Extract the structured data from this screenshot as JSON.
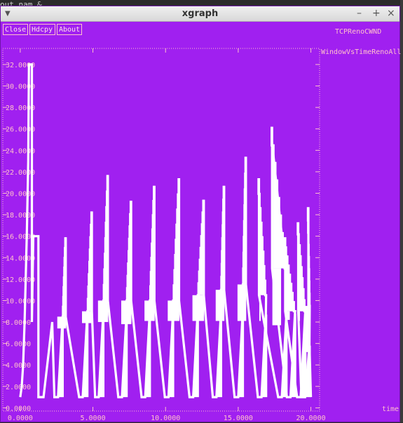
{
  "background": {
    "terminal_text": "out.nam &"
  },
  "window": {
    "title": "xgraph",
    "menu_icon": "triangle-down-icon",
    "controls": {
      "minimize": "–",
      "maximize": "+",
      "close": "×"
    }
  },
  "buttons": {
    "close": "Close",
    "hdcpy": "Hdcpy",
    "about": "About"
  },
  "plot": {
    "title": "TCPRenoCWND",
    "series_label": "WindowVsTimeRenoAll",
    "x_unit": "time",
    "x_ticks": [
      "0.0000",
      "5.0000",
      "10.0000",
      "15.0000",
      "20.0000"
    ],
    "y_ticks": [
      "0.0000",
      "2.0000",
      "4.0000",
      "6.0000",
      "8.0000",
      "10.0000",
      "12.0000",
      "14.0000",
      "16.0000",
      "18.0000",
      "20.0000",
      "22.0000",
      "24.0000",
      "26.0000",
      "28.0000",
      "30.0000",
      "32.0000"
    ],
    "colors": {
      "background": "#a020f0",
      "axes": "#ffc0cb",
      "series": "#ffffff"
    }
  },
  "chart_data": {
    "type": "line",
    "title": "TCPRenoCWND",
    "legend": [
      "WindowVsTimeRenoAll"
    ],
    "xlabel": "time",
    "ylabel": "",
    "xlim": [
      -1.2,
      20.6
    ],
    "ylim": [
      -0.3,
      33.5
    ],
    "grid": false,
    "cycles": [
      {
        "peak_t": 3.1,
        "peak": 15.8,
        "high_floor": 8.5,
        "low_t": 2.9,
        "low_peak": 8.0
      },
      {
        "peak_t": 4.9,
        "peak": 18.2,
        "high_floor": 9.0,
        "low_t": 4.6,
        "low_peak": 8.5
      },
      {
        "peak_t": 6.0,
        "peak": 21.6,
        "high_floor": 10.0,
        "low_t": 5.7,
        "low_peak": 8.6
      },
      {
        "peak_t": 7.6,
        "peak": 19.2,
        "high_floor": 10.0,
        "low_t": 7.3,
        "low_peak": 8.4
      },
      {
        "peak_t": 9.2,
        "peak": 20.6,
        "high_floor": 10.0,
        "low_t": 8.9,
        "low_peak": 8.7
      },
      {
        "peak_t": 10.9,
        "peak": 21.3,
        "high_floor": 10.0,
        "low_t": 10.5,
        "low_peak": 8.7
      },
      {
        "peak_t": 12.6,
        "peak": 19.3,
        "high_floor": 10.5,
        "low_t": 12.2,
        "low_peak": 8.7
      },
      {
        "peak_t": 14.0,
        "peak": 20.6,
        "high_floor": 11.0,
        "low_t": 13.8,
        "low_peak": 8.7
      },
      {
        "peak_t": 15.5,
        "peak": 23.3,
        "high_floor": 11.5,
        "low_t": 15.3,
        "low_peak": 8.7
      },
      {
        "peak_t": 16.4,
        "peak": 21.3,
        "high_floor": 10.5,
        "low_t": 16.9,
        "low_peak": 8.7
      },
      {
        "peak_t": 17.3,
        "peak": 26.1,
        "high_floor": 13.0,
        "low_t": 18.3,
        "low_peak": 8.3
      },
      {
        "peak_t": 18.2,
        "peak": 15.8,
        "high_floor": 9.0,
        "low_t": 18.9,
        "low_peak": 8.8
      },
      {
        "peak_t": 19.1,
        "peak": 17.2,
        "high_floor": 9.0,
        "low_t": 19.6,
        "low_peak": 8.7
      },
      {
        "peak_t": 19.8,
        "peak": 18.6,
        "high_floor": 9.5,
        "low_t": 19.9,
        "low_peak": 5.8
      }
    ],
    "startup": {
      "points": [
        [
          0,
          1
        ],
        [
          0.1,
          2
        ],
        [
          0.2,
          4
        ],
        [
          0.3,
          8
        ],
        [
          0.45,
          16
        ],
        [
          0.55,
          23
        ],
        [
          0.6,
          32
        ],
        [
          0.8,
          32
        ],
        [
          0.8,
          8
        ],
        [
          0.9,
          16
        ],
        [
          1.25,
          16
        ],
        [
          1.25,
          1
        ],
        [
          1.6,
          1
        ],
        [
          1.9,
          4.5
        ],
        [
          2.2,
          8
        ]
      ]
    }
  }
}
